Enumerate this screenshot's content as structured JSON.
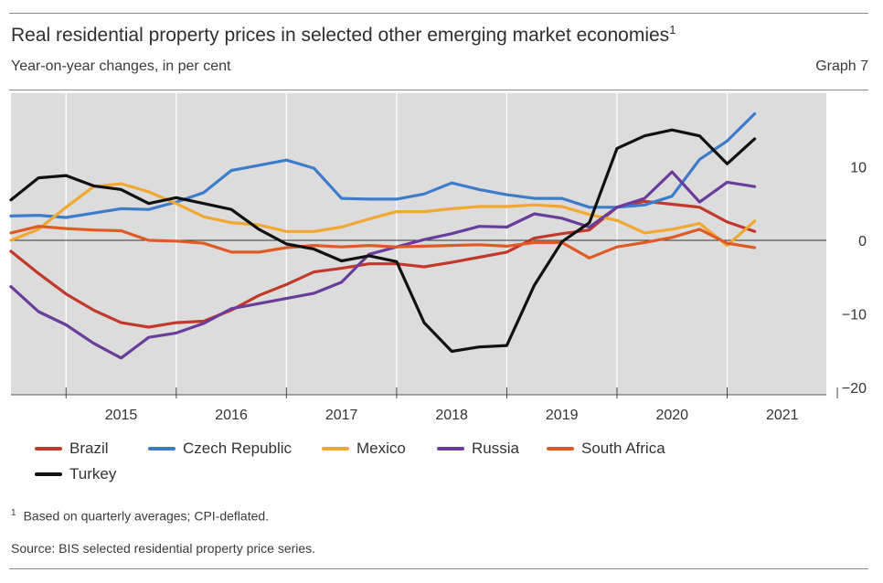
{
  "header": {
    "title": "Real residential property prices in selected other emerging market economies",
    "title_footnote_mark": "1",
    "subtitle": "Year-on-year changes, in per cent",
    "graph_number": "Graph 7"
  },
  "chart_data": {
    "type": "line",
    "title": "Real residential property prices in selected other emerging market economies",
    "ylabel": "Year-on-year changes, in per cent",
    "xlabel": "",
    "x_tick_labels": [
      "2015",
      "2016",
      "2017",
      "2018",
      "2019",
      "2020",
      "2021"
    ],
    "x_range": [
      2014.5,
      2021.9
    ],
    "ylim": [
      -21,
      20
    ],
    "y_ticks": [
      10,
      0,
      -10,
      -20
    ],
    "y_tick_labels": [
      "10",
      "0",
      "−10",
      "−20"
    ],
    "grid": true,
    "x": [
      2014.5,
      2014.75,
      2015.0,
      2015.25,
      2015.5,
      2015.75,
      2016.0,
      2016.25,
      2016.5,
      2016.75,
      2017.0,
      2017.25,
      2017.5,
      2017.75,
      2018.0,
      2018.25,
      2018.5,
      2018.75,
      2019.0,
      2019.25,
      2019.5,
      2019.75,
      2020.0,
      2020.25,
      2020.5,
      2020.75,
      2021.0,
      2021.25
    ],
    "series": [
      {
        "name": "Brazil",
        "color": "#c0392b",
        "values": [
          -1.5,
          -4.5,
          -7.3,
          -9.5,
          -11.2,
          -11.8,
          -11.2,
          -11.0,
          -9.5,
          -7.5,
          -6.0,
          -4.3,
          -3.8,
          -3.2,
          -3.2,
          -3.6,
          -3.0,
          -2.3,
          -1.6,
          0.3,
          0.9,
          1.4,
          4.5,
          5.3,
          4.9,
          4.5,
          2.5,
          1.2
        ]
      },
      {
        "name": "Czech Republic",
        "color": "#3d7cc9",
        "values": [
          3.3,
          3.4,
          3.1,
          3.7,
          4.3,
          4.2,
          5.2,
          6.5,
          9.5,
          10.2,
          10.9,
          9.8,
          5.7,
          5.6,
          5.6,
          6.3,
          7.8,
          6.9,
          6.2,
          5.7,
          5.7,
          4.5,
          4.5,
          4.8,
          6.0,
          11.0,
          13.5,
          17.2
        ]
      },
      {
        "name": "Mexico",
        "color": "#f0a830",
        "values": [
          0.0,
          1.5,
          4.5,
          7.3,
          7.7,
          6.6,
          5.0,
          3.2,
          2.4,
          2.1,
          1.2,
          1.2,
          1.8,
          2.9,
          3.9,
          3.9,
          4.3,
          4.6,
          4.6,
          4.8,
          4.6,
          3.5,
          2.7,
          1.0,
          1.5,
          2.3,
          -0.7,
          2.6
        ]
      },
      {
        "name": "Russia",
        "color": "#6a3d9a",
        "values": [
          -6.3,
          -9.7,
          -11.5,
          -14.0,
          -16.0,
          -13.2,
          -12.6,
          -11.3,
          -9.3,
          -8.6,
          -7.9,
          -7.2,
          -5.7,
          -1.9,
          -0.9,
          0.1,
          0.9,
          1.9,
          1.8,
          3.6,
          3.0,
          1.8,
          4.5,
          5.7,
          9.3,
          5.2,
          7.9,
          7.3
        ]
      },
      {
        "name": "South Africa",
        "color": "#e05a25",
        "values": [
          1.0,
          1.9,
          1.6,
          1.4,
          1.3,
          0.0,
          -0.1,
          -0.4,
          -1.6,
          -1.6,
          -1.0,
          -0.7,
          -0.9,
          -0.7,
          -0.9,
          -0.8,
          -0.7,
          -0.6,
          -0.8,
          -0.3,
          -0.3,
          -2.4,
          -0.9,
          -0.3,
          0.4,
          1.5,
          -0.4,
          -1.0
        ]
      },
      {
        "name": "Turkey",
        "color": "#111111",
        "values": [
          5.5,
          8.5,
          8.8,
          7.4,
          6.9,
          5.0,
          5.8,
          5.0,
          4.2,
          1.5,
          -0.5,
          -1.2,
          -2.8,
          -2.1,
          -2.9,
          -11.2,
          -15.1,
          -14.5,
          -14.3,
          -6.1,
          -0.2,
          2.4,
          12.5,
          14.2,
          15.0,
          14.2,
          10.4,
          13.8
        ]
      }
    ]
  },
  "legend": {
    "items": [
      {
        "label": "Brazil",
        "color": "#c0392b"
      },
      {
        "label": "Czech Republic",
        "color": "#3d7cc9"
      },
      {
        "label": "Mexico",
        "color": "#f0a830"
      },
      {
        "label": "Russia",
        "color": "#6a3d9a"
      },
      {
        "label": "South Africa",
        "color": "#e05a25"
      },
      {
        "label": "Turkey",
        "color": "#111111"
      }
    ]
  },
  "footer": {
    "footnote_mark": "1",
    "footnote": "Based on quarterly averages; CPI-deflated.",
    "source": "Source: BIS selected residential property price series."
  }
}
